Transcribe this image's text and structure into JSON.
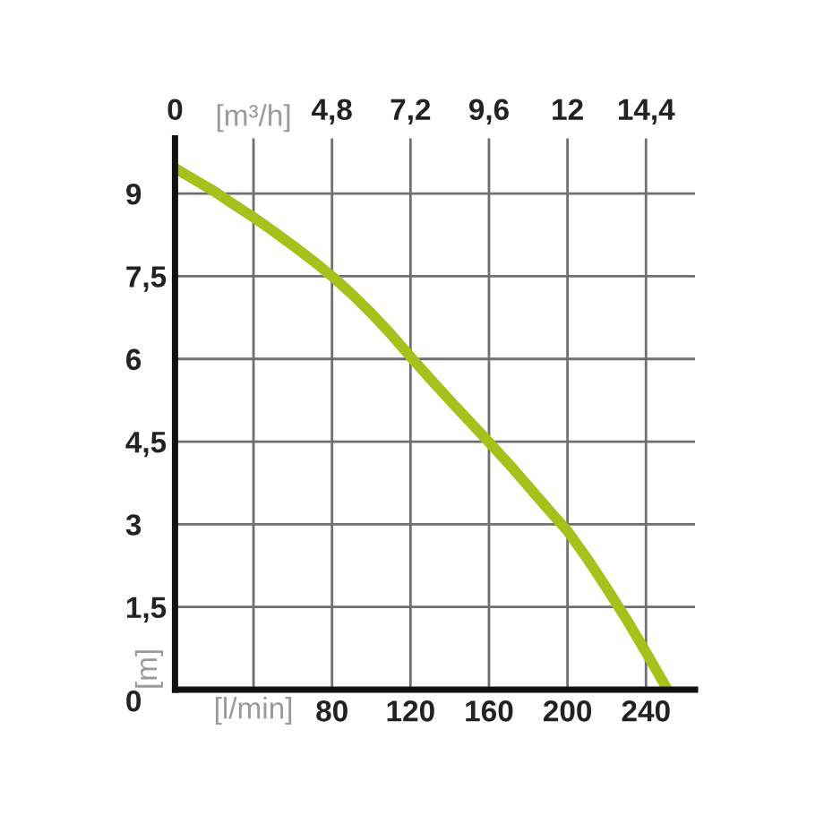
{
  "chart_data": {
    "type": "line",
    "xlabel": "[l/min]",
    "x2label": "[m³/h]",
    "ylabel": "[m]",
    "x": [
      0,
      10,
      20,
      30,
      40,
      50,
      60,
      70,
      80,
      90,
      100,
      110,
      120,
      130,
      140,
      150,
      160,
      170,
      180,
      190,
      200,
      210,
      220,
      230,
      240,
      251
    ],
    "series": [
      {
        "color": "#a5c21c",
        "values": [
          9.46,
          9.25,
          9.04,
          8.8,
          8.57,
          8.32,
          8.06,
          7.79,
          7.5,
          7.18,
          6.83,
          6.45,
          6.04,
          5.64,
          5.25,
          4.87,
          4.49,
          4.1,
          3.69,
          3.28,
          2.88,
          2.38,
          1.84,
          1.28,
          0.68,
          0
        ]
      }
    ],
    "xlim": [
      0,
      265
    ],
    "xticks": [
      {
        "value": 0,
        "label": null
      },
      {
        "value": 40,
        "label": null
      },
      80,
      120,
      160,
      200,
      240
    ],
    "x2lim": [
      0,
      15.9
    ],
    "x2ticks": [
      0,
      {
        "value": 2.4,
        "label": null
      },
      {
        "value": 4.8,
        "label": "4,8"
      },
      {
        "value": 7.2,
        "label": "7,2"
      },
      {
        "value": 9.6,
        "label": "9,6"
      },
      12,
      {
        "value": 14.4,
        "label": "14,4"
      }
    ],
    "ylim": [
      0,
      10
    ],
    "yticks": [
      0,
      {
        "value": 1.5,
        "label": "1,5"
      },
      3,
      {
        "value": 4.5,
        "label": "4,5"
      },
      6,
      {
        "value": 7.5,
        "label": "7,5"
      },
      9
    ],
    "grid": true,
    "marker": "none",
    "line_style": "solid"
  }
}
